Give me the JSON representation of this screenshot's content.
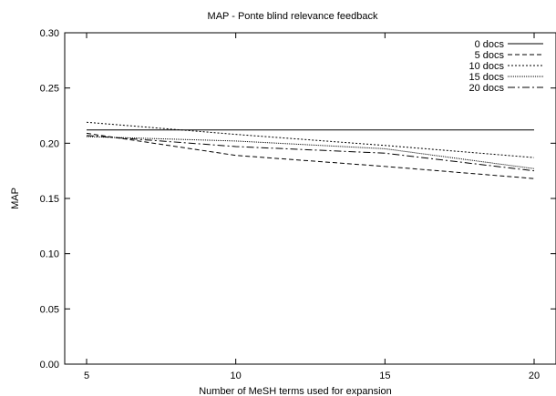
{
  "chart_data": {
    "type": "line",
    "title": "MAP - Ponte blind relevance feedback",
    "xlabel": "Number of MeSH terms used for expansion",
    "ylabel": "MAP",
    "xlim": [
      5,
      20
    ],
    "ylim": [
      0.0,
      0.3
    ],
    "xticks": [
      5,
      10,
      15,
      20
    ],
    "xtick_labels": [
      "5",
      "10",
      "15",
      "20"
    ],
    "yticks": [
      0.0,
      0.05,
      0.1,
      0.15,
      0.2,
      0.25,
      0.3
    ],
    "ytick_labels": [
      "0.00",
      "0.05",
      "0.10",
      "0.15",
      "0.20",
      "0.25",
      "0.30"
    ],
    "grid": false,
    "legend_position": "top-right",
    "x": [
      5,
      10,
      15,
      20
    ],
    "series": [
      {
        "name": "0 docs",
        "dash": "none",
        "values": [
          0.212,
          0.212,
          0.212,
          0.212
        ]
      },
      {
        "name": "5 docs",
        "dash": "5,3",
        "values": [
          0.209,
          0.189,
          0.179,
          0.168
        ]
      },
      {
        "name": "10 docs",
        "dash": "2,2",
        "values": [
          0.219,
          0.208,
          0.198,
          0.187
        ]
      },
      {
        "name": "15 docs",
        "dash": "1,1",
        "values": [
          0.206,
          0.202,
          0.195,
          0.177
        ]
      },
      {
        "name": "20 docs",
        "dash": "8,3,2,3",
        "values": [
          0.207,
          0.197,
          0.191,
          0.175
        ]
      }
    ]
  }
}
